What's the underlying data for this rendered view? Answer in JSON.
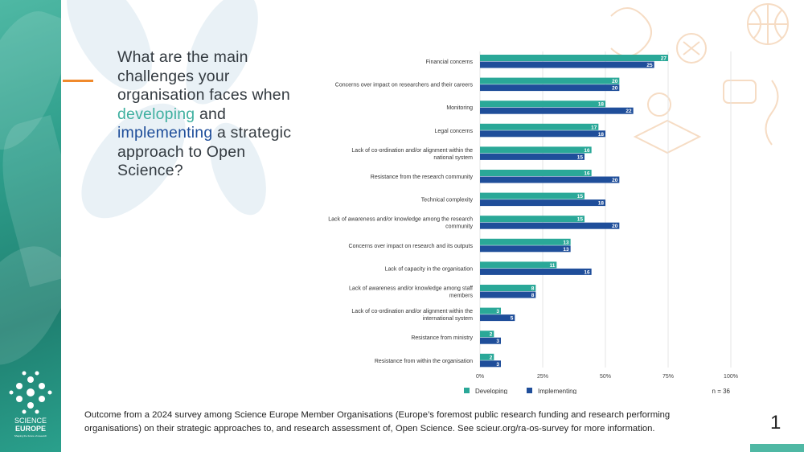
{
  "question": {
    "part1": "What are the main challenges your organisation faces when ",
    "word_developing": "developing",
    "part2": " and ",
    "word_implementing": "implementing",
    "part3": " a strategic approach to Open Science?"
  },
  "footnote": "Outcome from a 2024 survey among Science Europe Member Organisations (Europe’s foremost public research funding and research performing organisations) on their strategic approaches to, and research assessment of, Open Science. See scieur.org/ra-os-survey for more information.",
  "page_number": "1",
  "logo": {
    "line1": "SCIENCE",
    "line2": "EUROPE",
    "line3": "Shaping the future of research"
  },
  "colors": {
    "developing": "#2aa898",
    "implementing": "#1f4e9a",
    "accent": "#f08a2c",
    "text": "#333a40"
  },
  "chart_data": {
    "type": "bar",
    "orientation": "horizontal",
    "categories": [
      [
        "Financial concerns"
      ],
      [
        "Concerns over impact on researchers and their careers"
      ],
      [
        "Monitoring"
      ],
      [
        "Legal concerns"
      ],
      [
        "Lack of co-ordination and/or alignment within the",
        "national system"
      ],
      [
        "Resistance from the research community"
      ],
      [
        "Technical complexity"
      ],
      [
        "Lack of awareness and/or knowledge among the research",
        "community"
      ],
      [
        "Concerns over impact on research and its outputs"
      ],
      [
        "Lack of capacity in the organisation"
      ],
      [
        "Lack of awareness and/or knowledge among staff",
        "members"
      ],
      [
        "Lack of co-ordination and/or alignment within the",
        "international system"
      ],
      [
        "Resistance from ministry"
      ],
      [
        "Resistance from within the organisation"
      ]
    ],
    "series": [
      {
        "name": "Developing",
        "color": "#2aa898",
        "values": [
          27,
          20,
          18,
          17,
          16,
          16,
          15,
          15,
          13,
          11,
          8,
          3,
          2,
          2
        ]
      },
      {
        "name": "Implementing",
        "color": "#1f4e9a",
        "values": [
          25,
          20,
          22,
          18,
          15,
          20,
          18,
          20,
          13,
          16,
          8,
          5,
          3,
          3
        ]
      }
    ],
    "n_total": 36,
    "x_ticks": [
      "0%",
      "25%",
      "50%",
      "75%",
      "100%"
    ],
    "sample_label": "n = 36",
    "xlim": [
      0,
      100
    ],
    "grid": true,
    "legend_position": "bottom-left"
  }
}
